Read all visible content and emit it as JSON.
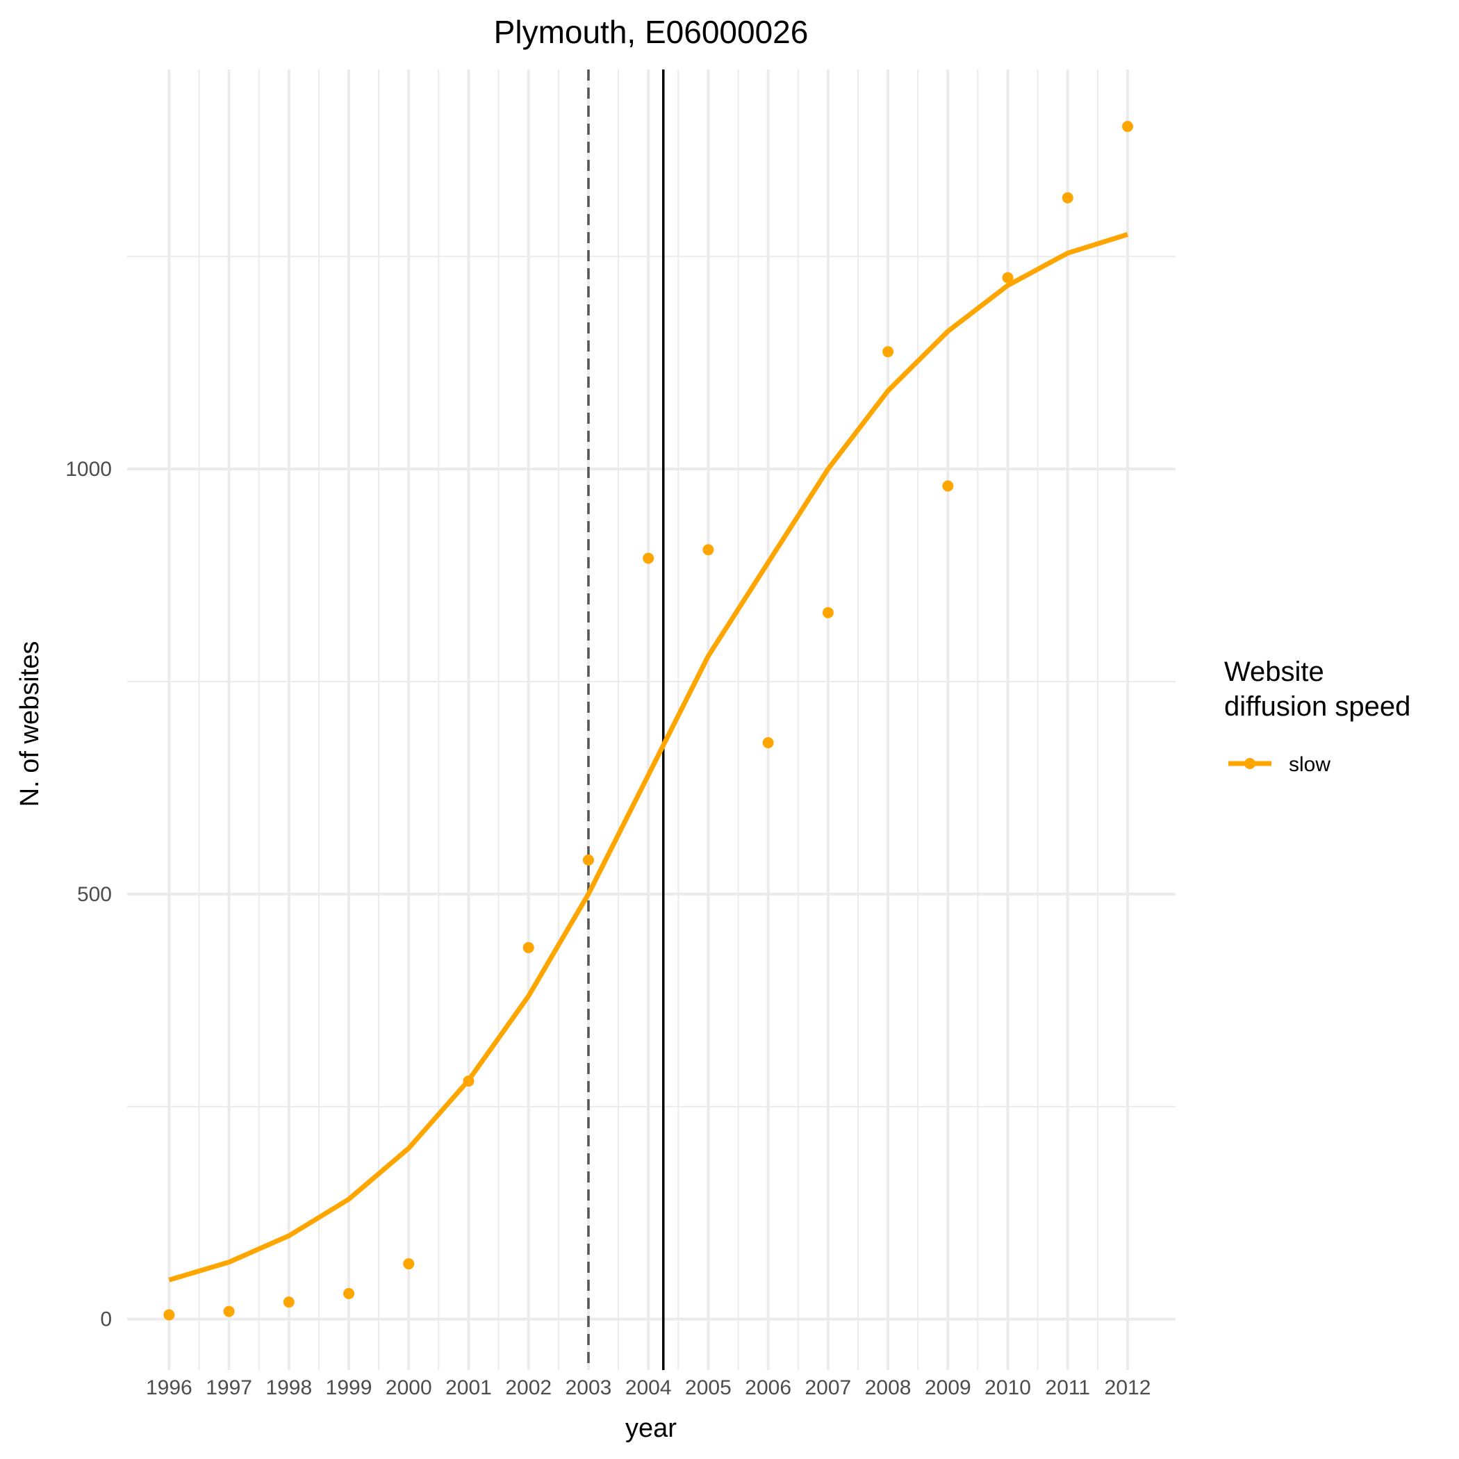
{
  "chart_data": {
    "type": "line",
    "title": "Plymouth, E06000026",
    "xlabel": "year",
    "ylabel": "N. of websites",
    "x": [
      1996,
      1997,
      1998,
      1999,
      2000,
      2001,
      2002,
      2003,
      2004,
      2005,
      2006,
      2007,
      2008,
      2009,
      2010,
      2011,
      2012
    ],
    "x_tick_labels": [
      "1996",
      "1997",
      "1998",
      "1999",
      "2000",
      "2001",
      "2002",
      "2003",
      "2004",
      "2005",
      "2006",
      "2007",
      "2008",
      "2009",
      "2010",
      "2011",
      "2012"
    ],
    "y_ticks": [
      0,
      500,
      1000
    ],
    "y_tick_labels": [
      "0",
      "500",
      "1000"
    ],
    "xlim": [
      1995.3,
      2012.8
    ],
    "ylim": [
      -60,
      1470
    ],
    "grid": true,
    "series": [
      {
        "name": "slow",
        "color": "#FFA500",
        "observed": [
          5,
          9,
          20,
          30,
          65,
          280,
          437,
          540,
          895,
          905,
          678,
          831,
          1138,
          980,
          1225,
          1319,
          1403
        ],
        "fitted": [
          46,
          67,
          98,
          141,
          201,
          281,
          380,
          500,
          640,
          780,
          890,
          1000,
          1092,
          1162,
          1216,
          1254,
          1276
        ]
      }
    ],
    "reference_lines": [
      {
        "x": 2003,
        "style": "dashed",
        "color": "#555555"
      },
      {
        "x": 2004.25,
        "style": "solid",
        "color": "#000000"
      }
    ],
    "legend": {
      "title_lines": [
        "Website",
        "diffusion speed"
      ],
      "placement": "right"
    }
  }
}
